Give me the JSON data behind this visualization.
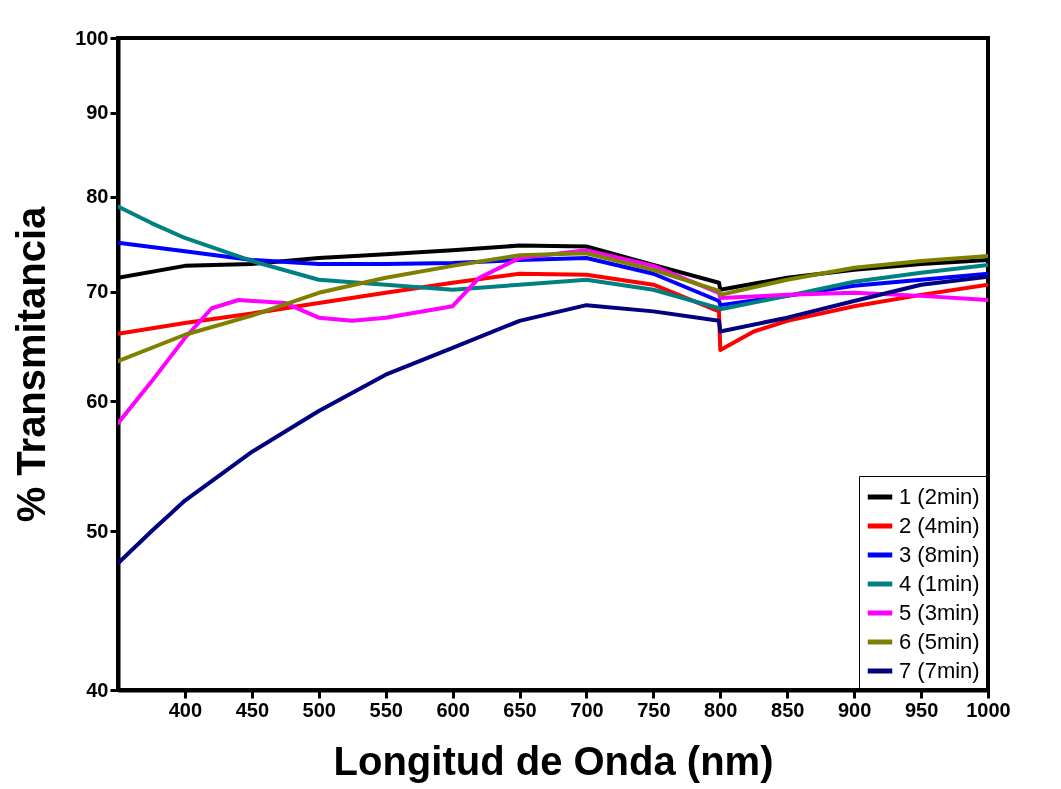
{
  "chart_data": {
    "type": "line",
    "xlabel": "Longitud de Onda (nm)",
    "ylabel": "% Transmitancia",
    "log": "y",
    "xlim": [
      350,
      1000
    ],
    "xticks": [
      400,
      450,
      500,
      550,
      600,
      650,
      700,
      750,
      800,
      850,
      900,
      950,
      1000
    ],
    "ylim": [
      40,
      100
    ],
    "yticks": [
      40,
      50,
      60,
      70,
      80,
      90,
      100
    ],
    "grid": false,
    "legend": "bottom right",
    "marker": "none",
    "line_style": "solid",
    "series": [
      {
        "name": "1 (2min)",
        "color": "#000000",
        "x": [
          350,
          400,
          450,
          500,
          550,
          600,
          650,
          700,
          750,
          799,
          800,
          850,
          900,
          950,
          1000
        ],
        "values": [
          71.4,
          72.6,
          72.8,
          73.4,
          73.8,
          74.2,
          74.7,
          74.6,
          72.7,
          70.9,
          70.2,
          71.4,
          72.2,
          72.8,
          73.2
        ]
      },
      {
        "name": "2 (4min)",
        "color": "#ff0000",
        "x": [
          350,
          400,
          450,
          500,
          550,
          600,
          650,
          700,
          750,
          799,
          800,
          825,
          850,
          900,
          950,
          1000
        ],
        "values": [
          66.0,
          67.0,
          67.9,
          68.9,
          69.9,
          70.9,
          71.8,
          71.7,
          70.7,
          68.1,
          64.5,
          66.2,
          67.2,
          68.6,
          69.7,
          70.7
        ]
      },
      {
        "name": "3 (8min)",
        "color": "#0000ff",
        "x": [
          350,
          400,
          450,
          500,
          550,
          600,
          650,
          700,
          750,
          799,
          800,
          850,
          900,
          950,
          1000
        ],
        "values": [
          75.0,
          74.1,
          73.2,
          72.8,
          72.8,
          72.9,
          73.2,
          73.4,
          71.8,
          69.1,
          68.7,
          69.6,
          70.6,
          71.2,
          71.8
        ]
      },
      {
        "name": "4 (1min)",
        "color": "#008080",
        "x": [
          350,
          375,
          400,
          450,
          500,
          550,
          600,
          650,
          700,
          750,
          799,
          800,
          850,
          900,
          950,
          1000
        ],
        "values": [
          78.9,
          77.1,
          75.5,
          73.1,
          71.2,
          70.7,
          70.2,
          70.7,
          71.2,
          70.2,
          68.4,
          68.3,
          69.6,
          71.0,
          71.9,
          72.7
        ]
      },
      {
        "name": "5 (3min)",
        "color": "#ff00ff",
        "x": [
          350,
          375,
          400,
          420,
          440,
          475,
          500,
          525,
          550,
          600,
          620,
          650,
          700,
          750,
          799,
          800,
          850,
          900,
          950,
          1000
        ],
        "values": [
          58.2,
          61.7,
          65.6,
          68.4,
          69.2,
          68.9,
          67.5,
          67.2,
          67.5,
          68.6,
          71.4,
          73.4,
          74.2,
          72.6,
          69.9,
          69.4,
          69.7,
          69.9,
          69.6,
          69.2
        ]
      },
      {
        "name": "6 (5min)",
        "color": "#808000",
        "x": [
          350,
          400,
          450,
          500,
          550,
          600,
          650,
          700,
          750,
          799,
          800,
          850,
          900,
          950,
          1000
        ],
        "values": [
          63.5,
          65.9,
          67.7,
          69.9,
          71.4,
          72.6,
          73.7,
          73.9,
          72.2,
          70.1,
          69.7,
          71.2,
          72.4,
          73.1,
          73.6
        ]
      },
      {
        "name": "7 (7min)",
        "color": "#000080",
        "x": [
          350,
          375,
          400,
          450,
          500,
          550,
          600,
          650,
          700,
          750,
          799,
          800,
          850,
          900,
          950,
          1000
        ],
        "values": [
          47.8,
          50.0,
          52.2,
          55.9,
          59.2,
          62.3,
          64.7,
          67.2,
          68.7,
          68.1,
          67.2,
          66.2,
          67.5,
          69.1,
          70.7,
          71.5
        ]
      }
    ]
  }
}
